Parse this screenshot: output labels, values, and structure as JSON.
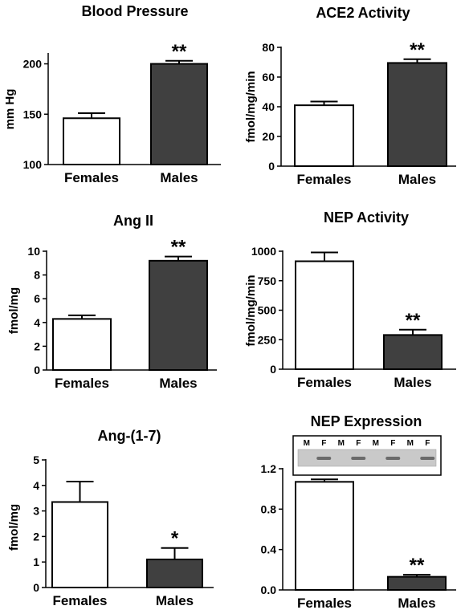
{
  "chart_data": [
    {
      "type": "bar",
      "title": "Blood Pressure",
      "ylabel": "mm Hg",
      "categories": [
        "Females",
        "Males"
      ],
      "values": [
        146,
        200
      ],
      "errors": [
        5,
        3
      ],
      "significance": [
        "",
        "**"
      ],
      "ylim": [
        100,
        210
      ],
      "yticks": [
        100,
        150,
        200
      ],
      "ytick_labels": [
        "100",
        "150",
        "200"
      ],
      "bar_colors": [
        "#ffffff",
        "#404040"
      ]
    },
    {
      "type": "bar",
      "title": "ACE2 Activity",
      "ylabel": "fmol/mg/min",
      "categories": [
        "Females",
        "Males"
      ],
      "values": [
        41,
        69.5
      ],
      "errors": [
        2.5,
        2.5
      ],
      "significance": [
        "",
        "**"
      ],
      "ylim": [
        0,
        80
      ],
      "yticks": [
        0,
        20,
        40,
        60,
        80
      ],
      "ytick_labels": [
        "0",
        "20",
        "40",
        "60",
        "80"
      ],
      "bar_colors": [
        "#ffffff",
        "#404040"
      ]
    },
    {
      "type": "bar",
      "title": "Ang II",
      "ylabel": "fmol/mg",
      "categories": [
        "Females",
        "Males"
      ],
      "values": [
        4.3,
        9.2
      ],
      "errors": [
        0.3,
        0.35
      ],
      "significance": [
        "",
        "**"
      ],
      "ylim": [
        0,
        10
      ],
      "yticks": [
        0,
        2,
        4,
        6,
        8,
        10
      ],
      "ytick_labels": [
        "0",
        "2",
        "4",
        "6",
        "8",
        "10"
      ],
      "bar_colors": [
        "#ffffff",
        "#404040"
      ]
    },
    {
      "type": "bar",
      "title": "NEP Activity",
      "ylabel": "fmol/mg/min",
      "categories": [
        "Females",
        "Males"
      ],
      "values": [
        915,
        290
      ],
      "errors": [
        75,
        45
      ],
      "significance": [
        "",
        "**"
      ],
      "ylim": [
        0,
        1000
      ],
      "yticks": [
        0,
        250,
        500,
        750,
        1000
      ],
      "ytick_labels": [
        "0",
        "250",
        "500",
        "750",
        "1000"
      ],
      "bar_colors": [
        "#ffffff",
        "#404040"
      ]
    },
    {
      "type": "bar",
      "title": "Ang-(1-7)",
      "ylabel": "fmol/mg",
      "categories": [
        "Females",
        "Males"
      ],
      "values": [
        3.35,
        1.1
      ],
      "errors": [
        0.8,
        0.45
      ],
      "significance": [
        "",
        "*"
      ],
      "ylim": [
        0,
        5
      ],
      "yticks": [
        0,
        1,
        2,
        3,
        4,
        5
      ],
      "ytick_labels": [
        "0",
        "1",
        "2",
        "3",
        "4",
        "5"
      ],
      "bar_colors": [
        "#ffffff",
        "#404040"
      ]
    },
    {
      "type": "bar",
      "title": "NEP Expression",
      "ylabel": "",
      "categories": [
        "Females",
        "Males"
      ],
      "values": [
        1.07,
        0.13
      ],
      "errors": [
        0.025,
        0.02
      ],
      "significance": [
        "",
        "**"
      ],
      "ylim": [
        0,
        1.2
      ],
      "yticks": [
        0,
        0.4,
        0.8,
        1.2
      ],
      "ytick_labels": [
        "0.0",
        "0.4",
        "0.8",
        "1.2"
      ],
      "bar_colors": [
        "#ffffff",
        "#404040"
      ],
      "blot": {
        "lane_labels": [
          "M",
          "F",
          "M",
          "F",
          "M",
          "F",
          "M",
          "F"
        ],
        "band_present": [
          false,
          true,
          false,
          true,
          false,
          true,
          false,
          true
        ]
      }
    }
  ]
}
